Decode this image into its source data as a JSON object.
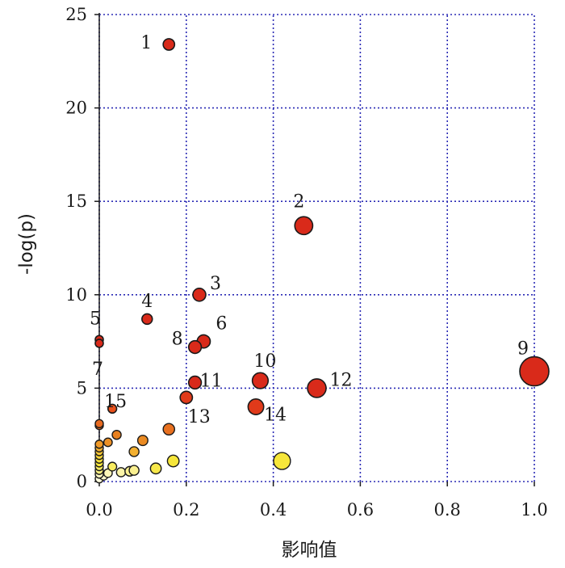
{
  "chart_data": {
    "type": "scatter",
    "title": "",
    "xlabel": "影响值",
    "ylabel": "-log(p)",
    "xlim": [
      0,
      1.0
    ],
    "ylim": [
      0,
      25
    ],
    "x_ticks": [
      "0.0",
      "0.2",
      "0.4",
      "0.6",
      "0.8",
      "1.0"
    ],
    "y_ticks": [
      "0",
      "5",
      "10",
      "15",
      "20",
      "25"
    ],
    "grid": true,
    "grid_style": "dotted",
    "grid_color": "#2b2bb5",
    "color_scale": [
      "#ffffd0",
      "#f5e83a",
      "#f0a030",
      "#e84a1a",
      "#d92a1a"
    ],
    "labeled_points": [
      {
        "id": "1",
        "x": 0.16,
        "y": 23.4,
        "color": "#d92a1a"
      },
      {
        "id": "2",
        "x": 0.47,
        "y": 13.7,
        "color": "#d92a1a"
      },
      {
        "id": "3",
        "x": 0.23,
        "y": 10.0,
        "color": "#d92a1a"
      },
      {
        "id": "4",
        "x": 0.11,
        "y": 8.7,
        "color": "#d92a1a"
      },
      {
        "id": "5",
        "x": 0.0,
        "y": 7.6,
        "color": "#d92a1a"
      },
      {
        "id": "6",
        "x": 0.24,
        "y": 7.5,
        "color": "#d92a1a"
      },
      {
        "id": "7",
        "x": 0.0,
        "y": 7.4,
        "color": "#d92a1a"
      },
      {
        "id": "8",
        "x": 0.22,
        "y": 7.2,
        "color": "#d92a1a"
      },
      {
        "id": "9",
        "x": 1.0,
        "y": 5.9,
        "color": "#d92a1a"
      },
      {
        "id": "10",
        "x": 0.37,
        "y": 5.4,
        "color": "#d92a1a"
      },
      {
        "id": "11",
        "x": 0.22,
        "y": 5.3,
        "color": "#d92a1a"
      },
      {
        "id": "12",
        "x": 0.5,
        "y": 5.0,
        "color": "#d92a1a"
      },
      {
        "id": "13",
        "x": 0.2,
        "y": 4.5,
        "color": "#e03a1a"
      },
      {
        "id": "14",
        "x": 0.36,
        "y": 4.0,
        "color": "#e03a1a"
      },
      {
        "id": "15",
        "x": 0.03,
        "y": 3.9,
        "color": "#e8501a"
      }
    ],
    "other_points": [
      {
        "x": 0.0,
        "y": 3.1,
        "color": "#e86a20"
      },
      {
        "x": 0.0,
        "y": 3.0,
        "color": "#e86a20"
      },
      {
        "x": 0.16,
        "y": 2.8,
        "color": "#e8701f"
      },
      {
        "x": 0.04,
        "y": 2.5,
        "color": "#e8801f"
      },
      {
        "x": 0.1,
        "y": 2.2,
        "color": "#ea8a22"
      },
      {
        "x": 0.02,
        "y": 2.1,
        "color": "#ec9025"
      },
      {
        "x": 0.0,
        "y": 2.0,
        "color": "#f09a28"
      },
      {
        "x": 0.0,
        "y": 1.8,
        "color": "#f3b030"
      },
      {
        "x": 0.0,
        "y": 1.6,
        "color": "#f5c535"
      },
      {
        "x": 0.08,
        "y": 1.6,
        "color": "#f3b030"
      },
      {
        "x": 0.0,
        "y": 1.4,
        "color": "#f5d538"
      },
      {
        "x": 0.0,
        "y": 1.2,
        "color": "#f6e03a"
      },
      {
        "x": 0.17,
        "y": 1.1,
        "color": "#f6e63a"
      },
      {
        "x": 0.42,
        "y": 1.1,
        "color": "#f6e63a"
      },
      {
        "x": 0.0,
        "y": 1.0,
        "color": "#f7e63c"
      },
      {
        "x": 0.0,
        "y": 0.8,
        "color": "#f8ec60"
      },
      {
        "x": 0.03,
        "y": 0.8,
        "color": "#f8ec60"
      },
      {
        "x": 0.13,
        "y": 0.7,
        "color": "#f7e84a"
      },
      {
        "x": 0.0,
        "y": 0.6,
        "color": "#faf080"
      },
      {
        "x": 0.07,
        "y": 0.55,
        "color": "#faf090"
      },
      {
        "x": 0.08,
        "y": 0.6,
        "color": "#faf090"
      },
      {
        "x": 0.05,
        "y": 0.5,
        "color": "#fbf4a8"
      },
      {
        "x": 0.02,
        "y": 0.45,
        "color": "#fcf6b8"
      },
      {
        "x": 0.0,
        "y": 0.4,
        "color": "#fcf6c0"
      },
      {
        "x": 0.01,
        "y": 0.3,
        "color": "#fdf8cc"
      },
      {
        "x": 0.0,
        "y": 0.15,
        "color": "#fefadc"
      }
    ]
  }
}
